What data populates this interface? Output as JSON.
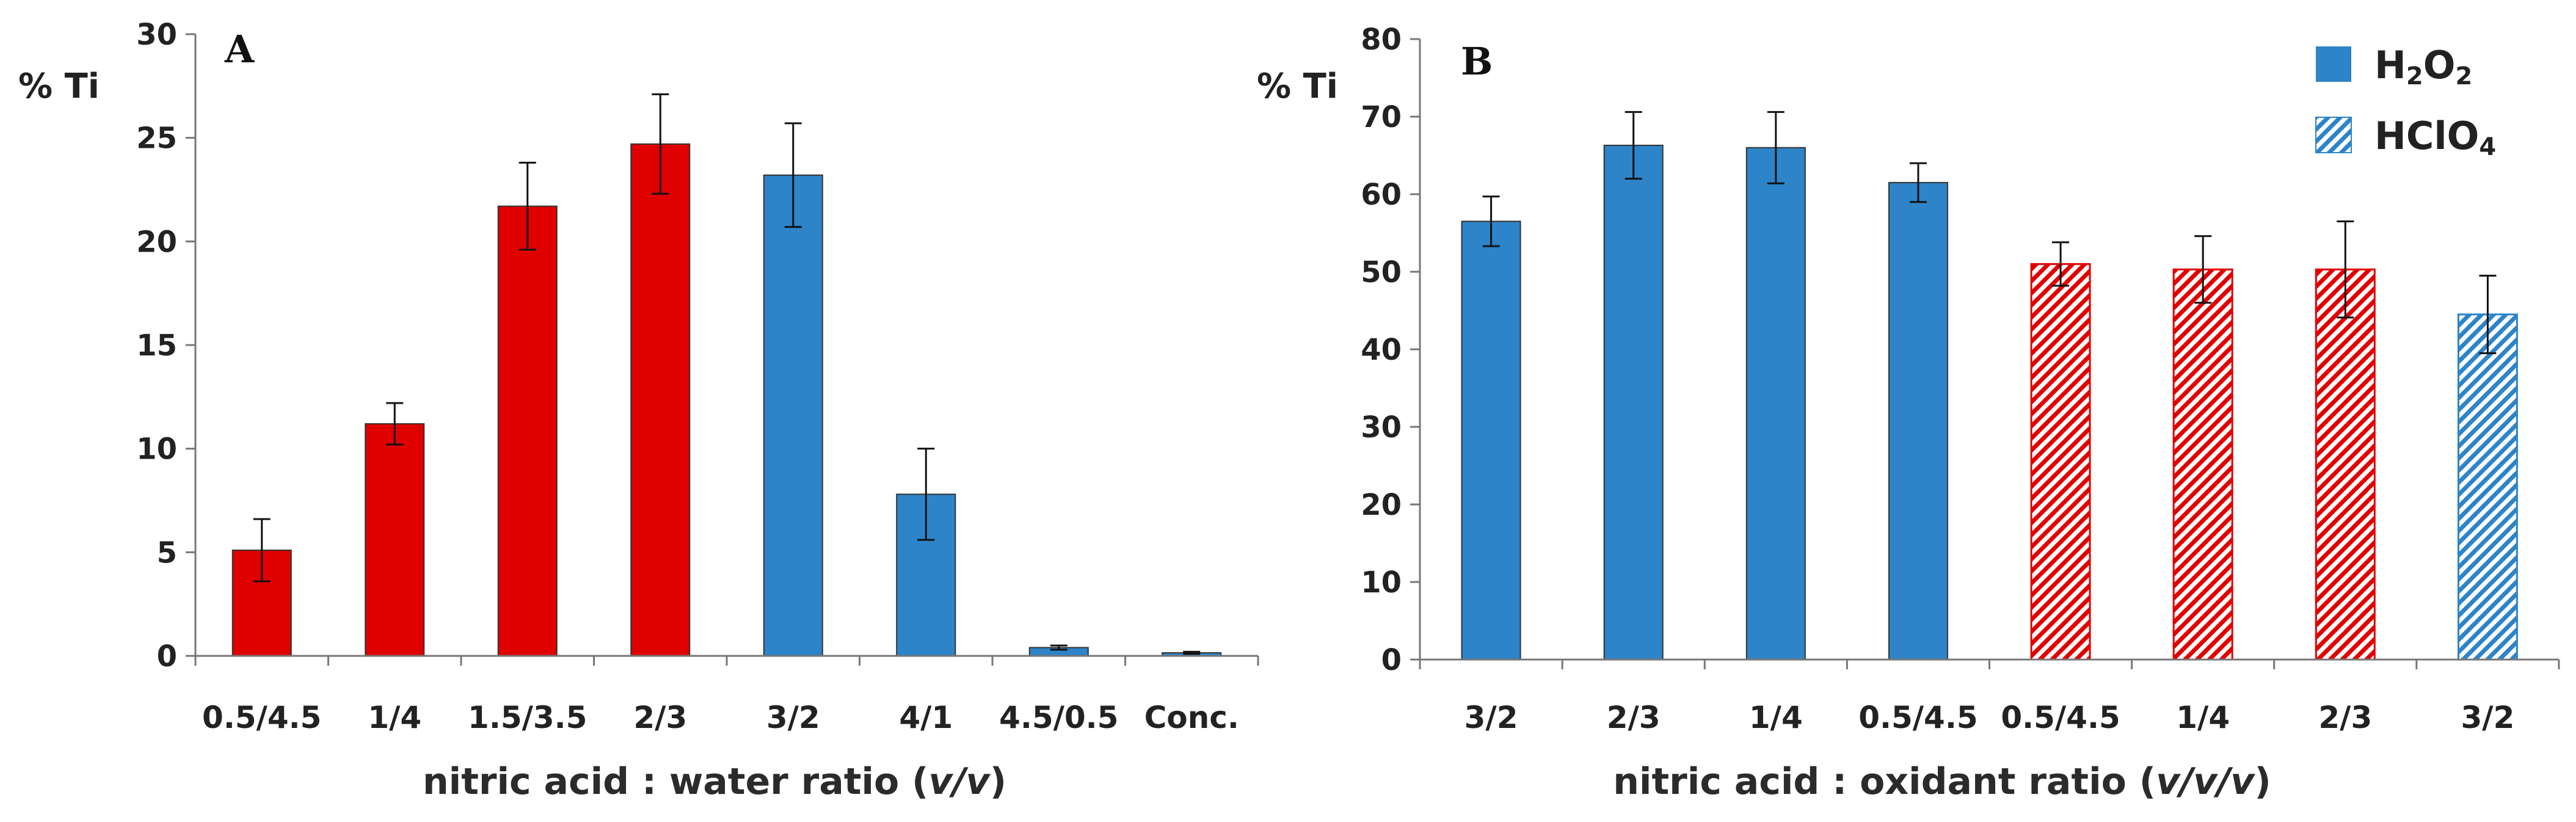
{
  "colors": {
    "red": "#e00000",
    "blue": "#2d84c8",
    "axis": "#777777",
    "text": "#222222"
  },
  "chart_data": [
    {
      "type": "bar",
      "panel_label": "A",
      "ylabel": "% Ti",
      "xlabel": {
        "prefix": "nitric acid : water ratio (",
        "italic": "v/v",
        "suffix": ")"
      },
      "ylim": [
        0,
        30
      ],
      "yticks": [
        "0",
        "5",
        "10",
        "15",
        "20",
        "25",
        "30"
      ],
      "grid": false,
      "categories": [
        "0.5/4.5",
        "1/4",
        "1.5/3.5",
        "2/3",
        "3/2",
        "4/1",
        "4.5/0.5",
        "Conc."
      ],
      "values": [
        5.1,
        11.2,
        21.7,
        24.7,
        23.2,
        7.8,
        0.4,
        0.15
      ],
      "errors": [
        1.5,
        1.0,
        2.1,
        2.4,
        2.5,
        2.2,
        0.1,
        0.05
      ],
      "fills": [
        "red",
        "red",
        "red",
        "red",
        "blue",
        "blue",
        "blue",
        "blue"
      ],
      "hatched": [
        false,
        false,
        false,
        false,
        false,
        false,
        false,
        false
      ]
    },
    {
      "type": "bar",
      "panel_label": "B",
      "ylabel": "% Ti",
      "xlabel": {
        "prefix": "nitric acid : oxidant ratio (",
        "italic": "v/v/v",
        "suffix": ")"
      },
      "ylim": [
        0,
        80
      ],
      "yticks": [
        "0",
        "10",
        "20",
        "30",
        "40",
        "50",
        "60",
        "70",
        "80"
      ],
      "grid": false,
      "categories": [
        "3/2",
        "2/3",
        "1/4",
        "0.5/4.5",
        "0.5/4.5",
        "1/4",
        "2/3",
        "3/2"
      ],
      "values": [
        56.5,
        66.3,
        66.0,
        61.5,
        51.0,
        50.3,
        50.3,
        44.5
      ],
      "errors": [
        3.2,
        4.3,
        4.6,
        2.5,
        2.8,
        4.3,
        6.2,
        5.0
      ],
      "fills": [
        "blue",
        "blue",
        "blue",
        "blue",
        "red",
        "red",
        "red",
        "blue"
      ],
      "hatched": [
        false,
        false,
        false,
        false,
        true,
        true,
        true,
        true
      ],
      "legend": {
        "position": "top-right",
        "entries": [
          {
            "base": "H",
            "sub1": "2",
            "mid": "O",
            "sub2": "2",
            "hatched": false
          },
          {
            "base": "HClO",
            "sub1": "4",
            "mid": "",
            "sub2": "",
            "hatched": true
          }
        ]
      }
    }
  ]
}
